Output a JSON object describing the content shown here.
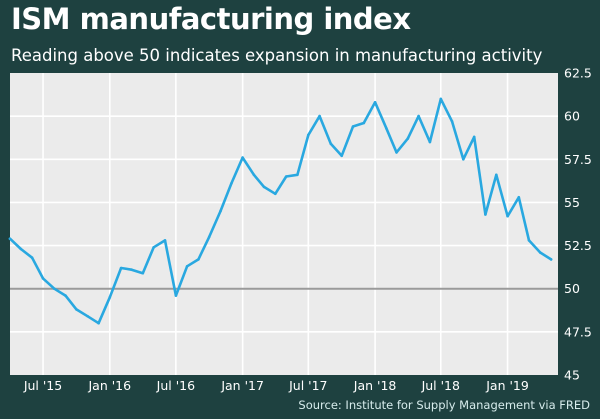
{
  "header": {
    "title": "ISM manufacturing index",
    "subtitle": "Reading above 50 indicates expansion in manufacturing activity"
  },
  "source": "Source: Institute for Supply Management via FRED",
  "colors": {
    "background": "#1e4140",
    "plot_background": "#ebebeb",
    "line": "#29a8e0",
    "baseline": "#9a9a9a",
    "grid": "#ffffff"
  },
  "chart_data": {
    "type": "line",
    "title": "ISM manufacturing index",
    "subtitle": "Reading above 50 indicates expansion in manufacturing activity",
    "xlabel": "",
    "ylabel": "",
    "ylim": [
      45,
      62.5
    ],
    "yticks": [
      "62.5",
      "60",
      "57.5",
      "55",
      "52.5",
      "50",
      "47.5",
      "45"
    ],
    "xticks": [
      "Jul '15",
      "Jan '16",
      "Jul '16",
      "Jan '17",
      "Jul '17",
      "Jan '18",
      "Jul '18",
      "Jan '19"
    ],
    "grid": true,
    "reference_line": 50,
    "series": [
      {
        "x": [
          "2015-04",
          "2015-05",
          "2015-06",
          "2015-07",
          "2015-08",
          "2015-09",
          "2015-10",
          "2015-11",
          "2015-12",
          "2016-01",
          "2016-02",
          "2016-03",
          "2016-04",
          "2016-05",
          "2016-06",
          "2016-07",
          "2016-08",
          "2016-09",
          "2016-10",
          "2016-11",
          "2016-12",
          "2017-01",
          "2017-02",
          "2017-03",
          "2017-04",
          "2017-05",
          "2017-06",
          "2017-07",
          "2017-08",
          "2017-09",
          "2017-10",
          "2017-11",
          "2017-12",
          "2018-01",
          "2018-02",
          "2018-03",
          "2018-04",
          "2018-05",
          "2018-06",
          "2018-07",
          "2018-08",
          "2018-09",
          "2018-10",
          "2018-11",
          "2018-12",
          "2019-01",
          "2019-02",
          "2019-03",
          "2019-04",
          "2019-05"
        ],
        "y": [
          52.9,
          52.3,
          51.8,
          50.6,
          50.0,
          49.6,
          48.8,
          48.4,
          48.0,
          49.5,
          51.2,
          51.1,
          50.9,
          52.4,
          52.8,
          49.6,
          51.3,
          51.7,
          53.0,
          54.5,
          56.1,
          57.6,
          56.6,
          55.9,
          55.5,
          56.5,
          56.6,
          58.9,
          60.0,
          58.4,
          57.7,
          59.4,
          59.6,
          60.8,
          59.3,
          57.9,
          58.7,
          60.0,
          58.5,
          61.0,
          59.7,
          57.5,
          58.8,
          54.3,
          56.6,
          54.2,
          55.3,
          52.8,
          52.1,
          51.7
        ]
      }
    ]
  }
}
